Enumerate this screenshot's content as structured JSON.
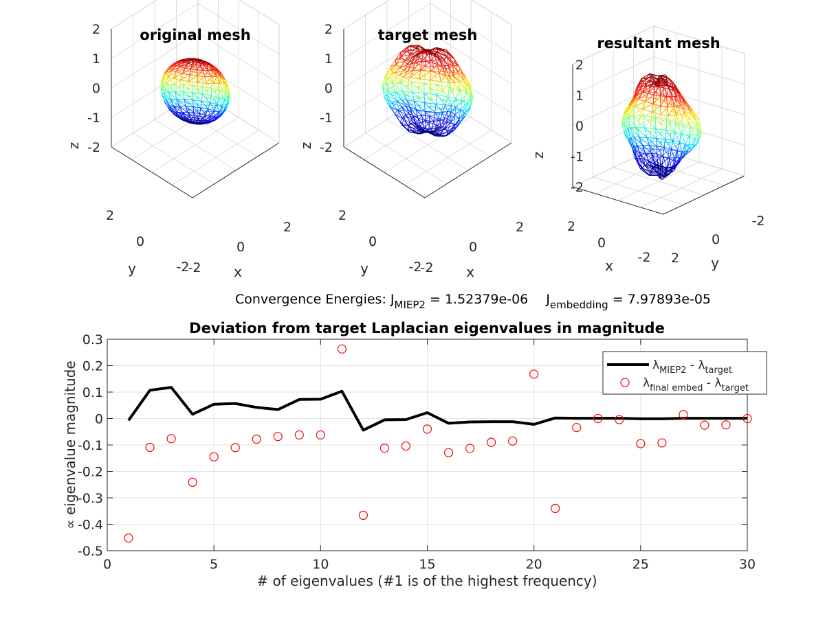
{
  "figure": {
    "energy_prefix": "Convergence Energies: ",
    "energy1_sym": "J",
    "energy1_sub": "MIEP2",
    "energy1_val": " = 1.52379e-06",
    "energy2_sym": "J",
    "energy2_sub": "embedding",
    "energy2_val": " = 7.97893e-05"
  },
  "subplots3d": [
    {
      "title": "original mesh",
      "zticks": [
        "2",
        "1",
        "0",
        "-1",
        "-2"
      ],
      "zlabel": "z",
      "left_ticks": [
        "2",
        "0",
        "-2"
      ],
      "left_label": "y",
      "right_ticks": [
        "-2",
        "0",
        "2"
      ],
      "right_label": "x"
    },
    {
      "title": "target mesh",
      "zticks": [
        "2",
        "1",
        "0",
        "-1",
        "-2"
      ],
      "zlabel": "z",
      "left_ticks": [
        "2",
        "0",
        "-2"
      ],
      "left_label": "y",
      "right_ticks": [
        "-2",
        "0",
        "2"
      ],
      "right_label": "x"
    },
    {
      "title": "resultant mesh",
      "zticks": [
        "2",
        "1",
        "0",
        "-1",
        "-2"
      ],
      "zlabel": "z",
      "left_ticks": [
        "2",
        "0",
        "-2"
      ],
      "left_label": "x",
      "right_ticks": [
        "2",
        "0",
        "-2"
      ],
      "right_label": "y"
    }
  ],
  "chart_data": {
    "type": "line",
    "title": "Deviation from target Laplacian eigenvalues in magnitude",
    "xlabel": "# of eigenvalues (#1 is of the highest frequency)",
    "ylabel": "∝ eigenvalue magnitude",
    "xlim": [
      0,
      30
    ],
    "ylim": [
      -0.5,
      0.3
    ],
    "xticks": [
      0,
      5,
      10,
      15,
      20,
      25,
      30
    ],
    "yticks": [
      0.3,
      0.2,
      0.1,
      0,
      -0.1,
      -0.2,
      -0.3,
      -0.4,
      -0.5
    ],
    "ytick_labels": [
      "0.3",
      "0.2",
      "0.1",
      "0",
      "-0.1",
      "-0.2",
      "-0.3",
      "-0.4",
      "-0.5"
    ],
    "grid": true,
    "legend_position": "top-right",
    "x": [
      1,
      2,
      3,
      4,
      5,
      6,
      7,
      8,
      9,
      10,
      11,
      12,
      13,
      14,
      15,
      16,
      17,
      18,
      19,
      20,
      21,
      22,
      23,
      24,
      25,
      26,
      27,
      28,
      29,
      30
    ],
    "series": [
      {
        "legend_sym": "λ",
        "legend_sub1": "MIEP2",
        "legend_mid": " - λ",
        "legend_sub2": "target",
        "style": "line",
        "color": "#000000",
        "values": [
          -0.007,
          0.107,
          0.118,
          0.016,
          0.054,
          0.057,
          0.042,
          0.034,
          0.072,
          0.073,
          0.103,
          -0.044,
          -0.005,
          -0.004,
          0.022,
          -0.018,
          -0.013,
          -0.012,
          -0.012,
          -0.022,
          0.002,
          0.001,
          0.001,
          0.001,
          -0.001,
          -0.001,
          0.001,
          0.001,
          0.001,
          0.001
        ]
      },
      {
        "legend_sym": "λ",
        "legend_sub1": "final embed",
        "legend_mid": " - λ",
        "legend_sub2": "target",
        "style": "marker",
        "color": "#ff0000",
        "values": [
          -0.452,
          -0.109,
          -0.076,
          -0.241,
          -0.145,
          -0.11,
          -0.078,
          -0.068,
          -0.062,
          -0.062,
          0.263,
          -0.366,
          -0.112,
          -0.104,
          -0.04,
          -0.129,
          -0.113,
          -0.09,
          -0.085,
          0.168,
          -0.34,
          -0.034,
          0.0,
          -0.004,
          -0.095,
          -0.092,
          0.015,
          -0.025,
          -0.024,
          0.0
        ]
      }
    ]
  }
}
